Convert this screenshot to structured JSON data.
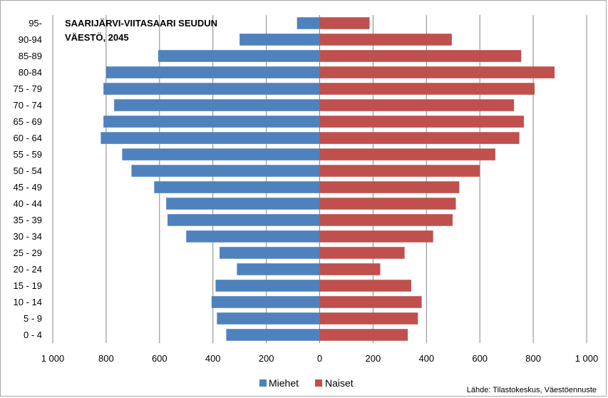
{
  "chart_data": {
    "type": "bar",
    "orientation": "horizontal",
    "title_lines": [
      "SAARIJÄRVI-VIITASAARI SEUDUN",
      "VÄESTÖ, 2045"
    ],
    "categories": [
      "0 - 4",
      "5 - 9",
      "10 - 14",
      "15 - 19",
      "20 - 24",
      "25 - 29",
      "30 - 34",
      "35 - 39",
      "40 - 44",
      "45 - 49",
      "50 - 54",
      "55 - 59",
      "60 - 64",
      "65 - 69",
      "70 - 74",
      "75 - 79",
      "80-84",
      "85-89",
      "90-94",
      "95-"
    ],
    "series": [
      {
        "name": "Miehet",
        "color": "#4f81bd",
        "side": "left",
        "values": [
          350,
          385,
          405,
          390,
          310,
          375,
          500,
          570,
          575,
          620,
          705,
          740,
          820,
          810,
          770,
          810,
          800,
          605,
          300,
          85
        ]
      },
      {
        "name": "Naiset",
        "color": "#c0504d",
        "side": "right",
        "values": [
          330,
          368,
          382,
          343,
          227,
          318,
          425,
          498,
          510,
          523,
          600,
          658,
          748,
          765,
          728,
          805,
          880,
          755,
          495,
          187
        ]
      }
    ],
    "x_ticks": [
      "1 000",
      "800",
      "600",
      "400",
      "200",
      "0",
      "200",
      "400",
      "600",
      "800",
      "1 000"
    ],
    "xlim": [
      -1000,
      1000
    ],
    "grid": "vertical",
    "legend": "bottom",
    "source": "Lähde: Tilastokeskus, Väestöennuste"
  }
}
